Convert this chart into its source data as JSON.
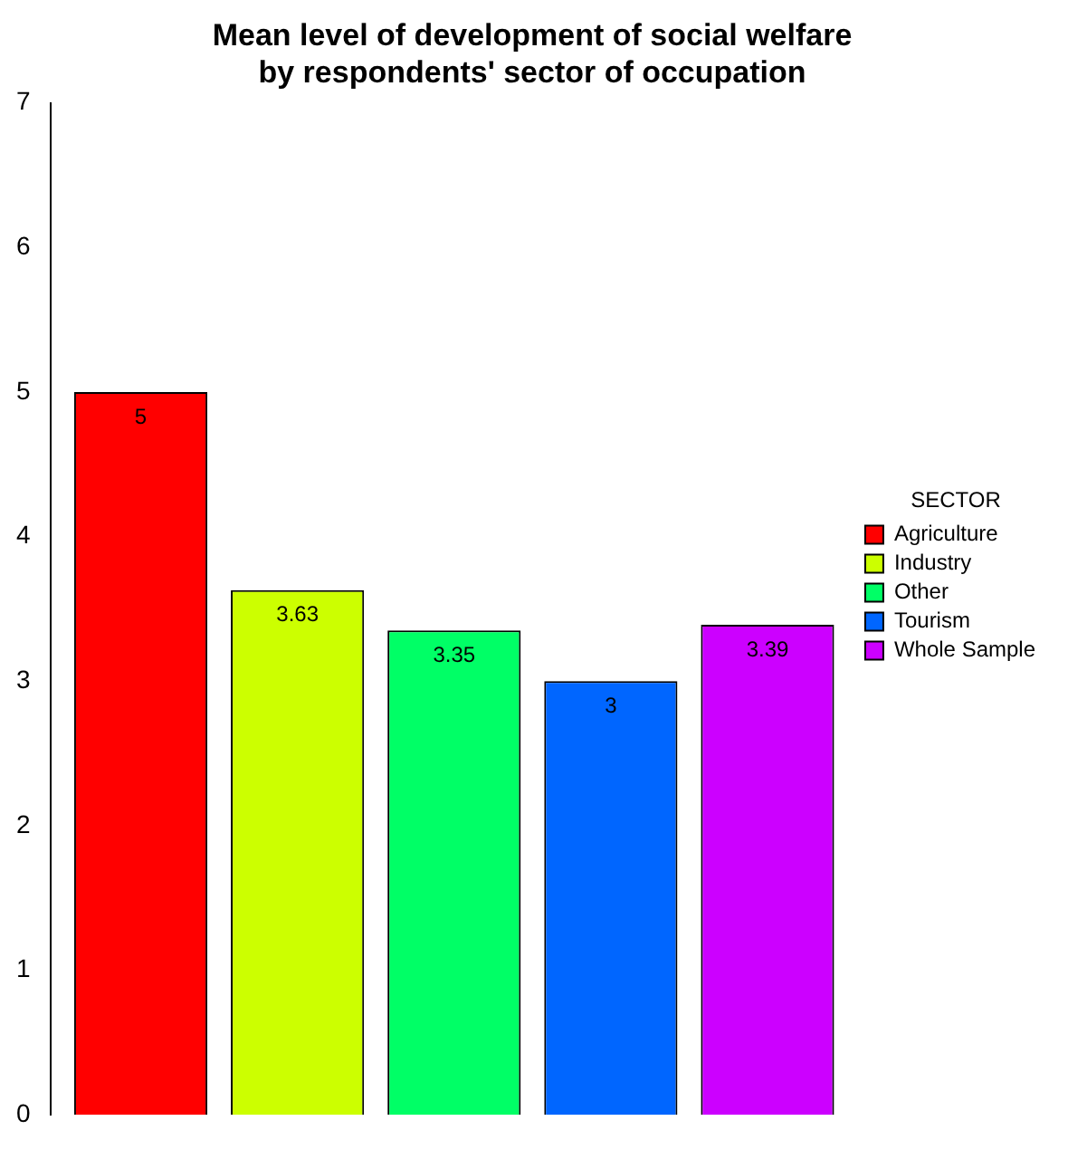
{
  "chart_data": {
    "type": "bar",
    "title": "Mean level of development of social welfare by respondents' sector of occupation",
    "legend_title": "SECTOR",
    "categories": [
      null
    ],
    "series": [
      {
        "name": "Agriculture",
        "color": "#ff0000",
        "values": [
          5
        ]
      },
      {
        "name": "Industry",
        "color": "#ccff00",
        "values": [
          3.63
        ]
      },
      {
        "name": "Other",
        "color": "#00ff66",
        "values": [
          3.35
        ]
      },
      {
        "name": "Tourism",
        "color": "#0066ff",
        "values": [
          3
        ]
      },
      {
        "name": "Whole Sample",
        "color": "#cc00ff",
        "values": [
          3.39
        ]
      }
    ],
    "ylim": [
      0,
      7
    ],
    "yticks": [
      0,
      1,
      2,
      3,
      4,
      5,
      6,
      7
    ],
    "grid": false,
    "legend": "right",
    "data_labels": true
  }
}
